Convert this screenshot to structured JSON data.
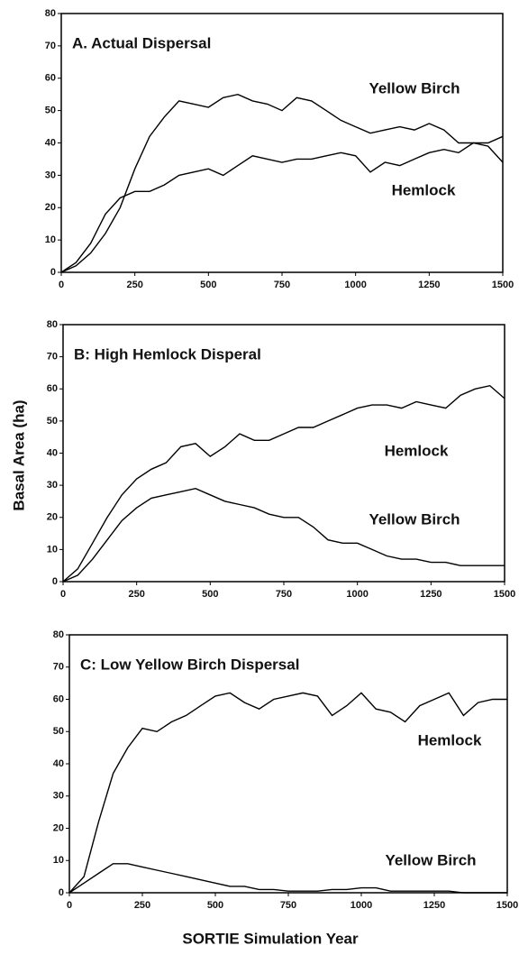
{
  "ylabel": "Basal Area (ha)",
  "xlabel": "SORTIE Simulation Year",
  "chart_data": [
    {
      "type": "line",
      "title": "A.  Actual Dispersal",
      "x": [
        0,
        50,
        100,
        150,
        200,
        250,
        300,
        350,
        400,
        450,
        500,
        550,
        600,
        650,
        700,
        750,
        800,
        850,
        900,
        950,
        1000,
        1050,
        1100,
        1150,
        1200,
        1250,
        1300,
        1350,
        1400,
        1450,
        1500
      ],
      "series": [
        {
          "name": "Yellow Birch",
          "color": "#000000",
          "values": [
            0,
            2,
            6,
            12,
            20,
            32,
            42,
            48,
            53,
            52,
            51,
            54,
            55,
            53,
            52,
            50,
            54,
            53,
            50,
            47,
            45,
            43,
            44,
            45,
            44,
            46,
            44,
            40,
            40,
            39,
            34
          ]
        },
        {
          "name": "Hemlock",
          "color": "#000000",
          "values": [
            0,
            3,
            9,
            18,
            23,
            25,
            25,
            27,
            30,
            31,
            32,
            30,
            33,
            36,
            35,
            34,
            35,
            35,
            36,
            37,
            36,
            31,
            34,
            33,
            35,
            37,
            38,
            37,
            40,
            40,
            42
          ]
        }
      ],
      "xlim": [
        0,
        1500
      ],
      "ylim": [
        0,
        80
      ],
      "xticks": [
        0,
        250,
        500,
        750,
        1000,
        1250,
        1500
      ],
      "yticks": [
        0,
        10,
        20,
        30,
        40,
        50,
        60,
        70,
        80
      ]
    },
    {
      "type": "line",
      "title": "B: High Hemlock Disperal",
      "x": [
        0,
        50,
        100,
        150,
        200,
        250,
        300,
        350,
        400,
        450,
        500,
        550,
        600,
        650,
        700,
        750,
        800,
        850,
        900,
        950,
        1000,
        1050,
        1100,
        1150,
        1200,
        1250,
        1300,
        1350,
        1400,
        1450,
        1500
      ],
      "series": [
        {
          "name": "Hemlock",
          "color": "#000000",
          "values": [
            0,
            4,
            12,
            20,
            27,
            32,
            35,
            37,
            42,
            43,
            39,
            42,
            46,
            44,
            44,
            46,
            48,
            48,
            50,
            52,
            54,
            55,
            55,
            54,
            56,
            55,
            54,
            58,
            60,
            61,
            57
          ]
        },
        {
          "name": "Yellow Birch",
          "color": "#000000",
          "values": [
            0,
            2,
            7,
            13,
            19,
            23,
            26,
            27,
            28,
            29,
            27,
            25,
            24,
            23,
            21,
            20,
            20,
            17,
            13,
            12,
            12,
            10,
            8,
            7,
            7,
            6,
            6,
            5,
            5,
            5,
            5
          ]
        }
      ],
      "xlim": [
        0,
        1500
      ],
      "ylim": [
        0,
        80
      ],
      "xticks": [
        0,
        250,
        500,
        750,
        1000,
        1250,
        1500
      ],
      "yticks": [
        0,
        10,
        20,
        30,
        40,
        50,
        60,
        70,
        80
      ]
    },
    {
      "type": "line",
      "title": "C: Low Yellow Birch Dispersal",
      "x": [
        0,
        50,
        100,
        150,
        200,
        250,
        300,
        350,
        400,
        450,
        500,
        550,
        600,
        650,
        700,
        750,
        800,
        850,
        900,
        950,
        1000,
        1050,
        1100,
        1150,
        1200,
        1250,
        1300,
        1350,
        1400,
        1450,
        1500
      ],
      "series": [
        {
          "name": "Hemlock",
          "color": "#000000",
          "values": [
            0,
            5,
            22,
            37,
            45,
            51,
            50,
            53,
            55,
            58,
            61,
            62,
            59,
            57,
            60,
            61,
            62,
            61,
            55,
            58,
            62,
            57,
            56,
            53,
            58,
            60,
            62,
            55,
            59,
            60,
            60
          ]
        },
        {
          "name": "Yellow Birch",
          "color": "#000000",
          "values": [
            0,
            3,
            6,
            9,
            9,
            8,
            7,
            6,
            5,
            4,
            3,
            2,
            2,
            1,
            1,
            0.5,
            0.5,
            0.5,
            1,
            1,
            1.5,
            1.5,
            0.5,
            0.5,
            0.5,
            0.5,
            0.5,
            0,
            0,
            0,
            0
          ]
        }
      ],
      "xlim": [
        0,
        1500
      ],
      "ylim": [
        0,
        80
      ],
      "xticks": [
        0,
        250,
        500,
        750,
        1000,
        1250,
        1500
      ],
      "yticks": [
        0,
        10,
        20,
        30,
        40,
        50,
        60,
        70,
        80
      ]
    }
  ]
}
